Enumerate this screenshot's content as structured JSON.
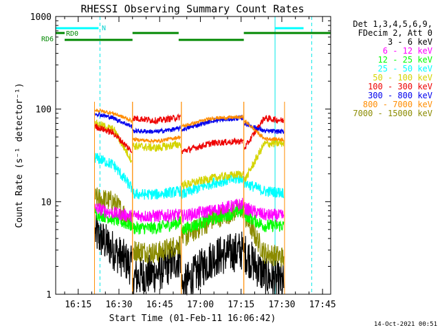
{
  "chart_data": {
    "type": "line",
    "title": "RHESSI Observing Summary Count Rates",
    "xlabel": "Start Time (01-Feb-11 16:06:42)",
    "ylabel": "Count Rate (s⁻¹ detector⁻¹)",
    "y_scale": "log",
    "ylim": [
      1,
      1000
    ],
    "xlim": [
      "16:06:42",
      "17:48:00"
    ],
    "x_ticks": [
      "16:15",
      "16:30",
      "16:45",
      "17:00",
      "17:15",
      "17:30",
      "17:45"
    ],
    "y_ticks": [
      "1",
      "10",
      "100",
      "1000"
    ],
    "grid": false,
    "timestamp": "14-Oct-2021 00:51",
    "legend": {
      "placement": "right",
      "header": [
        "Det 1,3,4,5,6,9,",
        "FDecim 2, Att 0"
      ],
      "entries": [
        {
          "label": "3 - 6 keV",
          "color": "#000000"
        },
        {
          "label": "6 - 12 keV",
          "color": "#ff00ff"
        },
        {
          "label": "12 - 25 keV",
          "color": "#00ff00"
        },
        {
          "label": "25 - 50 keV",
          "color": "#00ffff"
        },
        {
          "label": "50 - 100 keV",
          "color": "#d4d400"
        },
        {
          "label": "100 - 300 keV",
          "color": "#ee0000"
        },
        {
          "label": "300 - 800 keV",
          "color": "#0000ee"
        },
        {
          "label": "800 - 7000 keV",
          "color": "#ff8c00"
        },
        {
          "label": "7000 - 15000 keV",
          "color": "#8b8b00"
        }
      ]
    },
    "flags": {
      "N_label": "N",
      "RD0_label": "RD0",
      "RD6_label": "RD6",
      "N_segments": [
        [
          "16:06:42",
          "16:22:30"
        ],
        [
          "17:27:30",
          "17:38:00"
        ]
      ],
      "RD0_segments": [
        [
          "16:06:42",
          "16:10:00"
        ],
        [
          "16:35:00",
          "16:52:00"
        ],
        [
          "17:16:00",
          "17:48:00"
        ]
      ],
      "RD6_segments": [
        [
          "16:10:00",
          "16:35:00"
        ],
        [
          "16:52:00",
          "17:16:00"
        ]
      ],
      "night_lines": [
        "16:23:00",
        "17:41:00"
      ],
      "saa_lines": [
        "16:06:42",
        "17:27:30"
      ]
    },
    "orbits": [
      {
        "start": "16:21:00",
        "end": "16:35:00"
      },
      {
        "start": "16:35:00",
        "end": "16:53:00"
      },
      {
        "start": "16:53:00",
        "end": "17:16:00"
      },
      {
        "start": "17:16:00",
        "end": "17:31:00"
      }
    ],
    "series": [
      {
        "name": "3 - 6 keV",
        "values": [
          4.5,
          3.0,
          2.0,
          1.5,
          1.7,
          2.5,
          1.2,
          2.5,
          3.0,
          2.8,
          1.6,
          1.3
        ]
      },
      {
        "name": "6 - 12 keV",
        "values": [
          8.5,
          7.5,
          7.0,
          7.0,
          7.0,
          7.2,
          7.0,
          8.0,
          9.5,
          8.5,
          7.2,
          7.0
        ]
      },
      {
        "name": "12 - 25 keV",
        "values": [
          7.5,
          6.5,
          5.5,
          5.2,
          5.2,
          6.0,
          5.0,
          6.5,
          8.0,
          7.2,
          5.5,
          5.5
        ]
      },
      {
        "name": "25 - 50 keV",
        "values": [
          30,
          25,
          14,
          12,
          12,
          13,
          12,
          16,
          18,
          16,
          13,
          12.5
        ]
      },
      {
        "name": "50 - 100 keV",
        "values": [
          70,
          60,
          28,
          40,
          38,
          42,
          15,
          18,
          20,
          17,
          42,
          43
        ]
      },
      {
        "name": "100 - 300 keV",
        "values": [
          65,
          55,
          35,
          80,
          75,
          82,
          35,
          43,
          45,
          38,
          80,
          75
        ]
      },
      {
        "name": "300 - 800 keV",
        "values": [
          90,
          80,
          65,
          58,
          57,
          62,
          60,
          75,
          80,
          70,
          58,
          57
        ]
      },
      {
        "name": "800 - 7000 keV",
        "values": [
          98,
          90,
          75,
          47,
          45,
          50,
          65,
          80,
          82,
          75,
          48,
          47
        ]
      },
      {
        "name": "7000 - 15000 keV",
        "values": [
          11,
          10,
          6,
          3.0,
          2.8,
          3.5,
          4.0,
          6.5,
          8.5,
          7.0,
          2.8,
          2.5
        ]
      }
    ]
  }
}
